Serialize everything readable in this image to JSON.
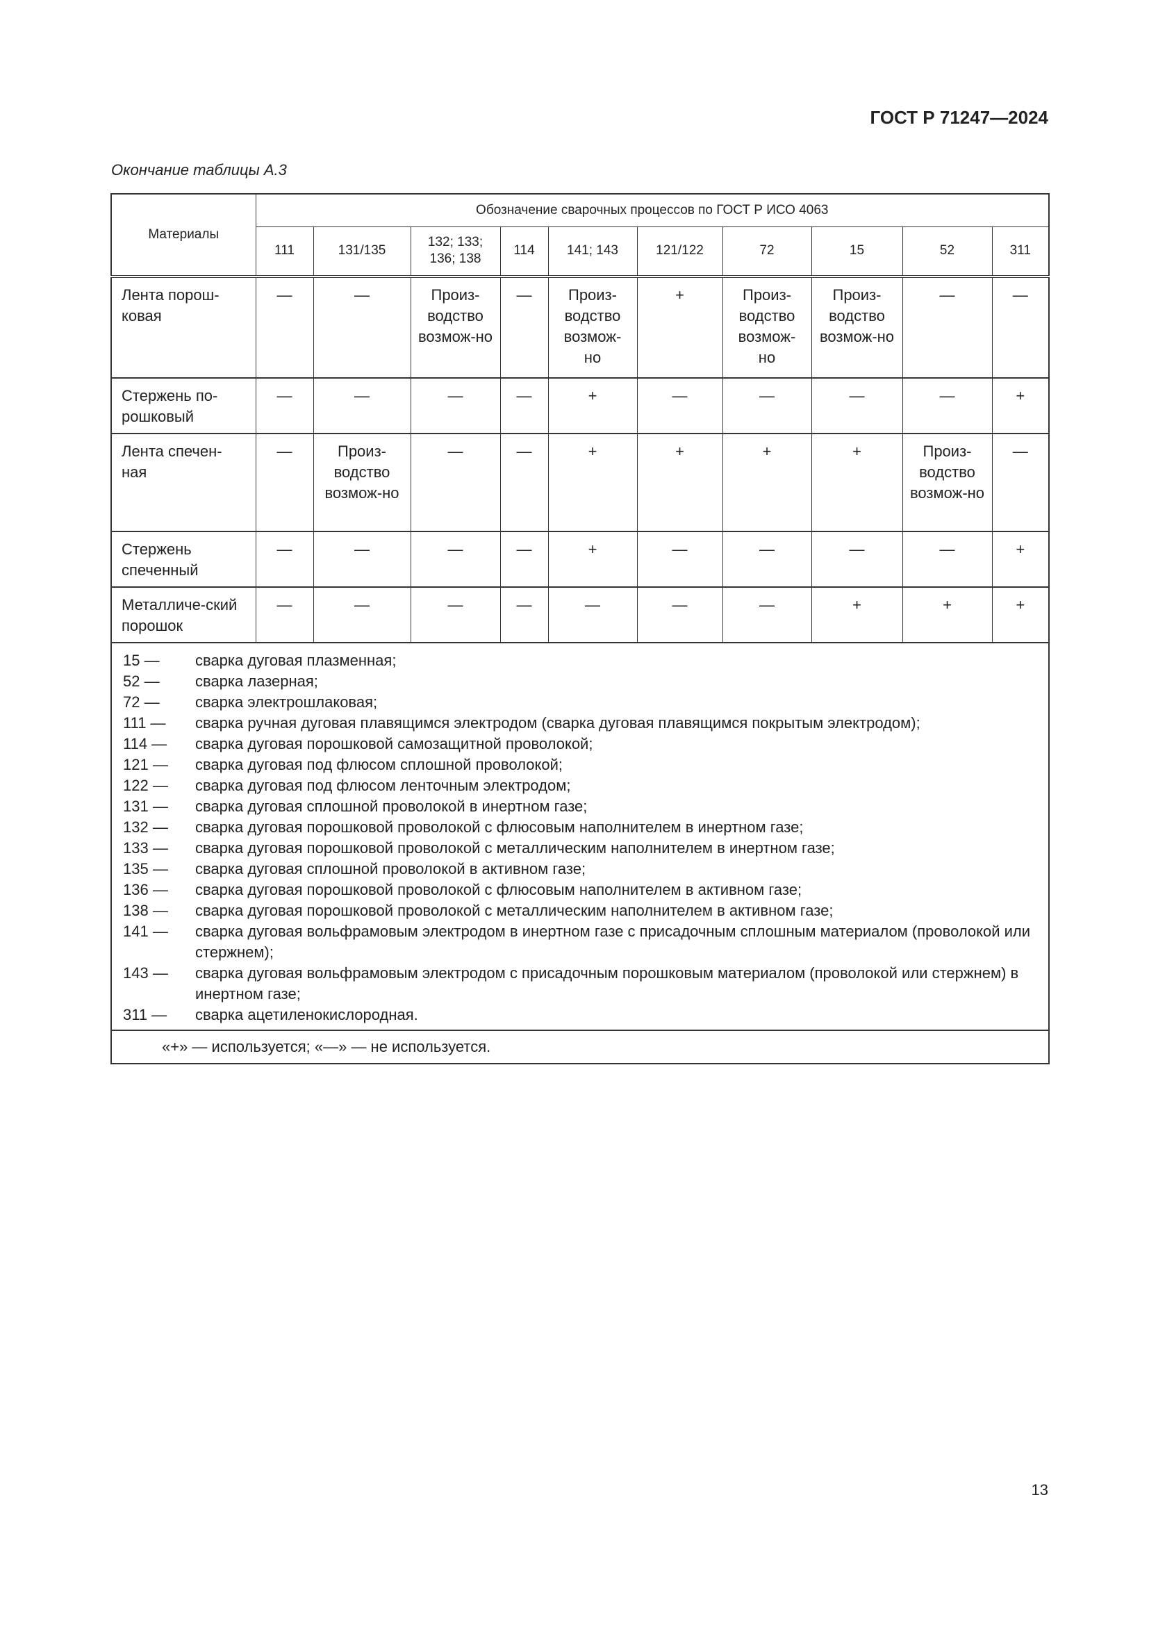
{
  "header": {
    "doc_code": "ГОСТ Р 71247—2024"
  },
  "caption": "Окончание таблицы А.3",
  "table": {
    "materials_header": "Материалы",
    "group_header": "Обозначение сварочных процессов по ГОСТ Р ИСО 4063",
    "columns": [
      "111",
      "131/135",
      "132; 133; 136; 138",
      "114",
      "141; 143",
      "121/122",
      "72",
      "15",
      "52",
      "311"
    ],
    "rows": [
      {
        "material": "Лента порош-ковая",
        "values": [
          "—",
          "—",
          "Произ-водство возмож-но",
          "—",
          "Произ-водство возмож-но",
          "+",
          "Произ-водство возмож-но",
          "Произ-водство возмож-но",
          "—",
          "—"
        ]
      },
      {
        "material": "Стержень по-рошковый",
        "values": [
          "—",
          "—",
          "—",
          "—",
          "+",
          "—",
          "—",
          "—",
          "—",
          "+"
        ]
      },
      {
        "material": "Лента спечен-ная",
        "values": [
          "—",
          "Произ-водство возмож-но",
          "—",
          "—",
          "+",
          "+",
          "+",
          "+",
          "Произ-водство возмож-но",
          "—"
        ]
      },
      {
        "material": "Стержень спеченный",
        "values": [
          "—",
          "—",
          "—",
          "—",
          "+",
          "—",
          "—",
          "—",
          "—",
          "+"
        ]
      },
      {
        "material": "Металличе-ский порошок",
        "values": [
          "—",
          "—",
          "—",
          "—",
          "—",
          "—",
          "—",
          "+",
          "+",
          "+"
        ]
      }
    ],
    "notes": [
      {
        "code": "15 —",
        "text": "сварка дуговая плазменная;"
      },
      {
        "code": "52 —",
        "text": "сварка лазерная;"
      },
      {
        "code": "72 —",
        "text": "сварка электрошлаковая;"
      },
      {
        "code": "111 —",
        "text": "сварка ручная дуговая плавящимся электродом (сварка дуговая плавящимся покрытым электродом);"
      },
      {
        "code": "114 —",
        "text": "сварка дуговая порошковой самозащитной проволокой;"
      },
      {
        "code": "121 —",
        "text": "сварка дуговая под флюсом сплошной проволокой;"
      },
      {
        "code": "122 —",
        "text": "сварка дуговая под флюсом ленточным электродом;"
      },
      {
        "code": "131 —",
        "text": "сварка дуговая сплошной проволокой в инертном газе;"
      },
      {
        "code": "132 —",
        "text": "сварка дуговая порошковой проволокой с флюсовым наполнителем в инертном газе;"
      },
      {
        "code": "133 —",
        "text": "сварка дуговая порошковой проволокой с металлическим наполнителем в инертном газе;"
      },
      {
        "code": "135 —",
        "text": "сварка дуговая сплошной проволокой в активном газе;"
      },
      {
        "code": "136 —",
        "text": "сварка дуговая порошковой проволокой с флюсовым наполнителем в активном газе;"
      },
      {
        "code": "138 —",
        "text": "сварка дуговая порошковой проволокой с металлическим наполнителем в активном газе;"
      },
      {
        "code": "141 —",
        "text": "сварка дуговая вольфрамовым электродом в инертном газе с присадочным сплошным материалом (проволокой или стержнем);"
      },
      {
        "code": "143 —",
        "text": "сварка дуговая вольфрамовым электродом с присадочным порошковым материалом (проволокой или стержнем) в инертном газе;"
      },
      {
        "code": "311 —",
        "text": "сварка ацетиленокислородная."
      }
    ],
    "legend": "«+» —  используется; «—» —  не используется."
  },
  "page_number": "13"
}
